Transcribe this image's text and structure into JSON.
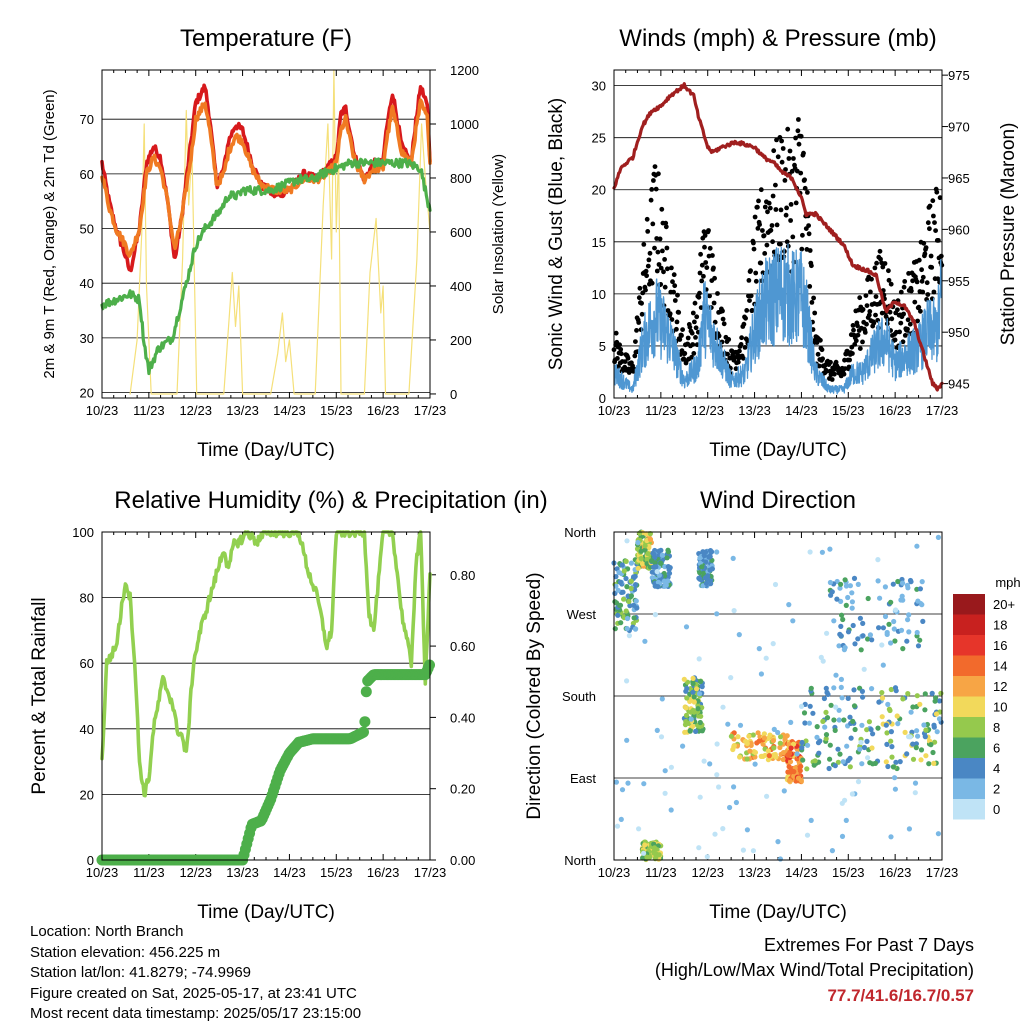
{
  "colors": {
    "temp2m": "#d7191c",
    "temp9m": "#f07a22",
    "dewpoint": "#4daf4a",
    "solar": "#f5e07a",
    "gust": "#000000",
    "wind": "#4f97d2",
    "pressure": "#a01f1f",
    "rh": "#92d050",
    "precip": "#4daf4a"
  },
  "chart_data": [
    {
      "id": "temperature",
      "type": "line",
      "title": "Temperature (F)",
      "xlabel": "Time (Day/UTC)",
      "ylabel": "2m & 9m T (Red, Orange) & 2m Td (Green)",
      "y2label": "Solar Insolation (Yellow)",
      "x_ticks": [
        "10/23",
        "11/23",
        "12/23",
        "13/23",
        "14/23",
        "15/23",
        "16/23",
        "17/23"
      ],
      "xlim": [
        0,
        7
      ],
      "ylim": [
        19,
        79
      ],
      "y_ticks": [
        20,
        30,
        40,
        50,
        60,
        70
      ],
      "y2lim": [
        -15,
        1200
      ],
      "y2_ticks": [
        0,
        200,
        400,
        600,
        800,
        1000,
        1200
      ],
      "grid": true,
      "series": [
        {
          "key": "temp2m",
          "axis": "left",
          "x": [
            0.0,
            0.15,
            0.3,
            0.5,
            0.6,
            0.8,
            0.95,
            1.1,
            1.25,
            1.4,
            1.5,
            1.55,
            1.7,
            1.9,
            2.0,
            2.2,
            2.3,
            2.45,
            2.6,
            2.7,
            2.85,
            3.0,
            3.2,
            3.4,
            3.7,
            4.0,
            4.3,
            4.6,
            4.8,
            5.0,
            5.1,
            5.2,
            5.4,
            5.6,
            5.8,
            6.0,
            6.05,
            6.2,
            6.4,
            6.6,
            6.7,
            6.8,
            6.95,
            7.0
          ],
          "values": [
            62,
            55,
            50,
            45,
            42,
            50,
            62,
            65,
            63,
            55,
            48,
            44,
            52,
            66,
            73,
            76,
            70,
            58,
            61,
            66,
            69,
            68,
            62,
            58,
            56,
            57,
            60,
            59,
            61,
            63,
            71,
            72,
            63,
            59,
            62,
            62,
            67,
            75,
            65,
            62,
            70,
            76,
            72,
            62
          ]
        },
        {
          "key": "temp9m",
          "axis": "left",
          "x": [
            0.0,
            0.15,
            0.3,
            0.5,
            0.6,
            0.8,
            0.95,
            1.1,
            1.25,
            1.4,
            1.5,
            1.55,
            1.7,
            1.9,
            2.0,
            2.2,
            2.3,
            2.45,
            2.6,
            2.7,
            2.85,
            3.0,
            3.2,
            3.4,
            3.7,
            4.0,
            4.3,
            4.6,
            4.8,
            5.0,
            5.1,
            5.2,
            5.4,
            5.6,
            5.8,
            6.0,
            6.05,
            6.2,
            6.4,
            6.6,
            6.7,
            6.8,
            6.95,
            7.0
          ],
          "values": [
            60,
            54,
            50,
            47,
            45,
            50,
            60,
            63,
            61,
            55,
            49,
            46,
            52,
            63,
            70,
            73,
            68,
            58,
            60,
            64,
            67,
            66,
            61,
            58,
            57,
            57,
            59,
            59,
            60,
            62,
            68,
            70,
            62,
            59,
            61,
            61,
            65,
            72,
            64,
            62,
            68,
            73,
            70,
            62
          ]
        },
        {
          "key": "dewpoint",
          "axis": "left",
          "x": [
            0.0,
            0.3,
            0.6,
            0.8,
            0.9,
            1.0,
            1.1,
            1.2,
            1.5,
            1.8,
            2.0,
            2.2,
            2.5,
            2.7,
            2.9,
            3.0,
            3.3,
            3.6,
            3.9,
            4.2,
            4.5,
            4.7,
            5.0,
            5.3,
            5.6,
            5.9,
            6.2,
            6.5,
            6.8,
            6.95,
            7.0
          ],
          "values": [
            36,
            37,
            38,
            37,
            29,
            24,
            26,
            28,
            30,
            40,
            47,
            50,
            53,
            56,
            56,
            57,
            57,
            57,
            58,
            59,
            59,
            60,
            61,
            62,
            62,
            62,
            62,
            62,
            61,
            55,
            54
          ]
        },
        {
          "key": "solar",
          "axis": "right",
          "x": [
            0.6,
            0.75,
            0.85,
            0.9,
            0.95,
            1.05,
            1.3,
            1.6,
            1.72,
            1.8,
            1.85,
            1.92,
            2.02,
            2.2,
            2.6,
            2.72,
            2.78,
            2.85,
            2.92,
            3.0,
            3.6,
            3.75,
            3.85,
            3.92,
            4.0,
            4.1,
            4.55,
            4.72,
            4.82,
            4.9,
            4.95,
            5.0,
            5.05,
            5.1,
            5.6,
            5.72,
            5.85,
            5.95,
            6.0,
            6.05,
            6.55,
            6.72,
            6.82,
            6.9,
            7.0
          ],
          "values": [
            0,
            200,
            600,
            1000,
            400,
            0,
            0,
            0,
            500,
            1050,
            700,
            900,
            0,
            0,
            0,
            300,
            450,
            250,
            400,
            0,
            0,
            150,
            300,
            120,
            200,
            0,
            0,
            700,
            1000,
            500,
            1200,
            600,
            900,
            0,
            0,
            450,
            650,
            300,
            400,
            0,
            0,
            500,
            1000,
            800,
            600
          ]
        }
      ]
    },
    {
      "id": "winds",
      "type": "scatter",
      "title": "Winds (mph) & Pressure (mb)",
      "xlabel": "Time (Day/UTC)",
      "ylabel": "Sonic Wind & Gust (Blue, Black)",
      "y2label": "Station Pressure (Maroon)",
      "x_ticks": [
        "10/23",
        "11/23",
        "12/23",
        "13/23",
        "14/23",
        "15/23",
        "16/23",
        "17/23"
      ],
      "xlim": [
        0,
        7
      ],
      "ylim": [
        0,
        31.5
      ],
      "y_ticks": [
        0,
        5,
        10,
        15,
        20,
        25,
        30
      ],
      "y2lim": [
        943.6,
        975.5
      ],
      "y2_ticks": [
        945,
        950,
        955,
        960,
        965,
        970,
        975
      ],
      "grid": true,
      "series": [
        {
          "key": "pressure",
          "axis": "right",
          "type": "line",
          "x": [
            0.0,
            0.15,
            0.4,
            0.6,
            0.8,
            1.0,
            1.2,
            1.5,
            1.7,
            1.8,
            2.0,
            2.1,
            2.3,
            2.6,
            3.0,
            3.2,
            3.4,
            3.6,
            3.8,
            4.0,
            4.1,
            4.3,
            4.6,
            4.9,
            5.1,
            5.4,
            5.6,
            5.8,
            6.0,
            6.2,
            6.4,
            6.6,
            6.8,
            6.9,
            7.0
          ],
          "values": [
            964,
            966,
            967,
            970,
            971.5,
            972,
            973,
            974,
            973,
            971,
            968,
            967.5,
            968,
            968.5,
            968,
            967,
            966.5,
            965.5,
            965,
            963,
            961.5,
            961.5,
            960,
            958.5,
            956.5,
            956,
            955.5,
            952,
            953,
            952.5,
            951,
            948,
            945,
            944.5,
            945
          ]
        },
        {
          "key": "wind",
          "axis": "left",
          "type": "band",
          "x": [
            0.0,
            0.2,
            0.4,
            0.6,
            0.8,
            0.9,
            1.0,
            1.2,
            1.5,
            1.8,
            1.9,
            2.0,
            2.2,
            2.5,
            2.8,
            3.0,
            3.2,
            3.4,
            3.6,
            3.8,
            4.0,
            4.1,
            4.3,
            4.6,
            4.9,
            5.1,
            5.3,
            5.6,
            5.8,
            6.0,
            6.2,
            6.5,
            6.7,
            6.9,
            7.0
          ],
          "values": [
            3,
            2,
            1,
            6,
            9,
            10,
            9,
            7,
            2,
            4,
            10,
            9,
            6,
            2,
            3,
            8,
            11,
            12,
            13,
            12,
            12,
            10,
            3,
            1,
            1,
            3,
            3,
            6,
            7,
            4,
            5,
            6,
            8,
            8,
            13
          ]
        },
        {
          "key": "gust",
          "axis": "left",
          "type": "band",
          "x": [
            0.0,
            0.2,
            0.4,
            0.6,
            0.8,
            0.9,
            1.0,
            1.2,
            1.5,
            1.8,
            1.9,
            2.0,
            2.2,
            2.5,
            2.8,
            3.0,
            3.2,
            3.4,
            3.6,
            3.8,
            4.0,
            4.1,
            4.3,
            4.6,
            4.9,
            5.1,
            5.3,
            5.6,
            5.8,
            6.0,
            6.2,
            6.5,
            6.7,
            6.9,
            7.0
          ],
          "values": [
            6,
            4,
            3,
            12,
            18,
            21,
            17,
            13,
            5,
            9,
            16,
            15,
            10,
            4,
            7,
            15,
            19,
            21,
            23,
            22,
            26,
            20,
            6,
            3,
            3,
            7,
            9,
            12,
            13,
            8,
            10,
            12,
            16,
            18,
            20
          ]
        }
      ]
    },
    {
      "id": "rh_precip",
      "type": "line",
      "title": "Relative Humidity (%) & Precipitation (in)",
      "xlabel": "Time (Day/UTC)",
      "ylabel": "Percent & Total Rainfall",
      "x_ticks": [
        "10/23",
        "11/23",
        "12/23",
        "13/23",
        "14/23",
        "15/23",
        "16/23",
        "17/23"
      ],
      "xlim": [
        0,
        7
      ],
      "ylim": [
        0,
        100
      ],
      "y_ticks": [
        0,
        20,
        40,
        60,
        80,
        100
      ],
      "y2lim": [
        0,
        0.92
      ],
      "y2_ticks": [
        "0.00",
        "0.20",
        "0.40",
        "0.60",
        "0.80"
      ],
      "grid": true,
      "series": [
        {
          "key": "rh",
          "axis": "left",
          "x": [
            0.0,
            0.1,
            0.3,
            0.5,
            0.6,
            0.7,
            0.8,
            0.9,
            1.0,
            1.1,
            1.3,
            1.5,
            1.6,
            1.7,
            1.8,
            1.95,
            2.1,
            2.3,
            2.5,
            2.6,
            2.7,
            2.8,
            3.0,
            3.1,
            3.3,
            3.5,
            3.8,
            4.0,
            4.2,
            4.4,
            4.6,
            4.8,
            4.9,
            5.0,
            5.2,
            5.5,
            5.6,
            5.7,
            5.8,
            6.0,
            6.2,
            6.4,
            6.6,
            6.7,
            6.8,
            6.9,
            7.0
          ],
          "values": [
            30,
            60,
            65,
            85,
            80,
            60,
            30,
            20,
            25,
            40,
            55,
            48,
            40,
            38,
            32,
            60,
            70,
            80,
            90,
            95,
            88,
            96,
            98,
            100,
            97,
            100,
            100,
            100,
            100,
            88,
            80,
            65,
            70,
            100,
            100,
            100,
            100,
            75,
            70,
            100,
            100,
            75,
            60,
            90,
            100,
            55,
            88
          ]
        },
        {
          "key": "precip",
          "axis": "right",
          "x": [
            0.0,
            3.0,
            3.1,
            3.2,
            3.4,
            3.6,
            3.8,
            4.0,
            4.2,
            4.5,
            4.8,
            5.0,
            5.3,
            5.6,
            5.65,
            5.8,
            6.2,
            6.6,
            6.9,
            7.0
          ],
          "values": [
            0.0,
            0.0,
            0.05,
            0.1,
            0.11,
            0.17,
            0.25,
            0.3,
            0.33,
            0.34,
            0.34,
            0.34,
            0.34,
            0.36,
            0.5,
            0.52,
            0.52,
            0.52,
            0.52,
            0.55
          ]
        }
      ]
    },
    {
      "id": "wind_direction",
      "type": "scatter",
      "title": "Wind Direction",
      "xlabel": "Time (Day/UTC)",
      "ylabel": "Direction (Colored By Speed)",
      "x_ticks": [
        "10/23",
        "11/23",
        "12/23",
        "13/23",
        "14/23",
        "15/23",
        "16/23",
        "17/23"
      ],
      "xlim": [
        0,
        7
      ],
      "y_ticks": [
        "North",
        "West",
        "South",
        "East",
        "North"
      ],
      "ylim_degrees": [
        0,
        360
      ],
      "grid": true,
      "colorbar_title": "mph",
      "colorbar_labels": [
        "20+",
        "18",
        "16",
        "14",
        "12",
        "10",
        "8",
        "6",
        "4",
        "2",
        "0"
      ],
      "colorbar_colors": [
        "#99191c",
        "#c8211f",
        "#e6352a",
        "#f26a2c",
        "#f7a545",
        "#f2d95b",
        "#95c94d",
        "#4ba35f",
        "#4a87c4",
        "#7ab8e5",
        "#bfe3f6"
      ],
      "clusters": [
        {
          "x": [
            0.0,
            0.5
          ],
          "dir": [
            250,
            330
          ],
          "speed": [
            2,
            8
          ]
        },
        {
          "x": [
            0.5,
            0.8
          ],
          "dir": [
            320,
            360
          ],
          "speed": [
            6,
            12
          ]
        },
        {
          "x": [
            0.8,
            1.2
          ],
          "dir": [
            300,
            340
          ],
          "speed": [
            2,
            6
          ]
        },
        {
          "x": [
            1.8,
            2.1
          ],
          "dir": [
            300,
            340
          ],
          "speed": [
            2,
            6
          ]
        },
        {
          "x": [
            1.5,
            1.9
          ],
          "dir": [
            140,
            200
          ],
          "speed": [
            4,
            10
          ]
        },
        {
          "x": [
            2.5,
            3.7
          ],
          "dir": [
            110,
            140
          ],
          "speed": [
            8,
            14
          ]
        },
        {
          "x": [
            3.7,
            4.0
          ],
          "dir": [
            85,
            130
          ],
          "speed": [
            10,
            16
          ]
        },
        {
          "x": [
            4.0,
            5.5
          ],
          "dir": [
            100,
            190
          ],
          "speed": [
            2,
            8
          ]
        },
        {
          "x": [
            5.5,
            7.0
          ],
          "dir": [
            100,
            190
          ],
          "speed": [
            2,
            10
          ]
        },
        {
          "x": [
            4.6,
            6.6
          ],
          "dir": [
            230,
            310
          ],
          "speed": [
            1,
            6
          ]
        },
        {
          "x": [
            0.6,
            1.0
          ],
          "dir": [
            0,
            20
          ],
          "speed": [
            6,
            10
          ]
        },
        {
          "x": [
            0.0,
            7.0
          ],
          "dir": [
            0,
            360
          ],
          "speed": [
            0,
            3
          ]
        }
      ]
    }
  ],
  "metadata": {
    "location": "Location: North Branch",
    "elevation": "Station elevation: 456.225 m",
    "latlon": "Station lat/lon: 41.8279; -74.9969",
    "created": "Figure created on Sat, 2025-05-17, at 23:41 UTC",
    "recent": "Most recent data timestamp: 2025/05/17 23:15:00"
  },
  "extremes": {
    "title": "Extremes For Past 7 Days",
    "subtitle": "(High/Low/Max Wind/Total Precipitation)",
    "values": "77.7/41.6/16.7/0.57"
  }
}
